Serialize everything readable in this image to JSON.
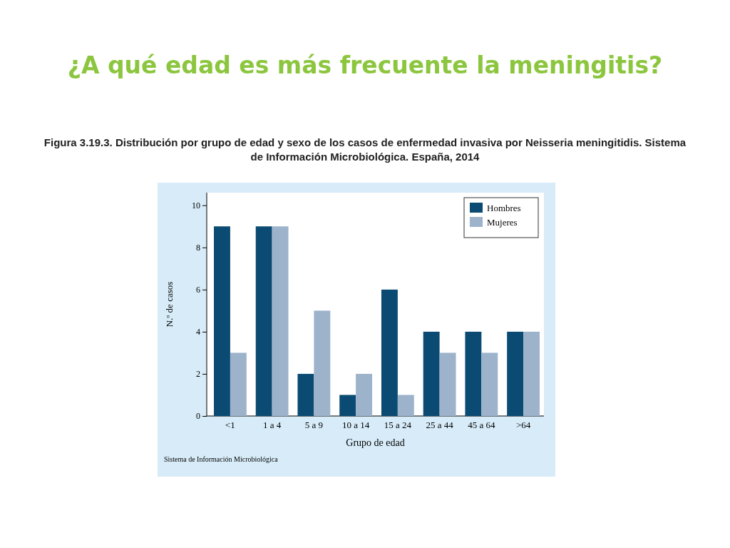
{
  "chart_data": {
    "type": "bar",
    "title": "¿A qué edad es más frecuente la meningitis?",
    "subtitle": "Figura 3.19.3. Distribución por grupo de edad y sexo de los casos de enfermedad invasiva por Neisseria meningitidis. Sistema de Información Microbiológica. España, 2014",
    "xlabel": "Grupo de edad",
    "ylabel": "N.º de casos",
    "annotations": [
      "Sistema de Información Microbiológica"
    ],
    "categories": [
      "<1",
      "1 a 4",
      "5 a 9",
      "10 a 14",
      "15 a 24",
      "25 a 44",
      "45 a 64",
      ">64"
    ],
    "series": [
      {
        "name": "Hombres",
        "color": "#0b4a72",
        "values": [
          9,
          9,
          2,
          1,
          6,
          4,
          4,
          4
        ]
      },
      {
        "name": "Mujeres",
        "color": "#9db3cb",
        "values": [
          3,
          9,
          5,
          2,
          1,
          3,
          3,
          4
        ]
      }
    ],
    "ylim": [
      0,
      10.6
    ],
    "yticks": [
      0,
      2,
      4,
      6,
      8,
      10
    ],
    "grid": false,
    "legend": "top right"
  }
}
